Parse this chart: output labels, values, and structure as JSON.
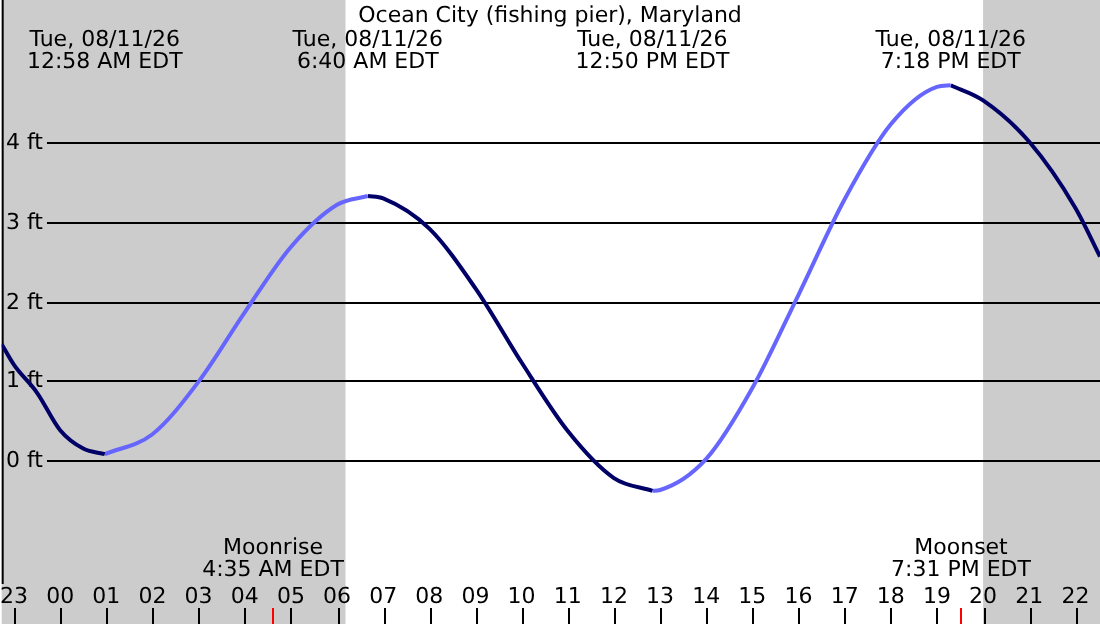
{
  "chart_data": {
    "type": "line",
    "title": "Ocean City (fishing pier), Maryland",
    "xlim": [
      "--08-10T22:44",
      "--08-11T22:32"
    ],
    "ylim": [
      -1.55,
      5.78
    ],
    "xticks": [
      {
        "value": "--08-10T23:00",
        "label": "23"
      },
      {
        "value": "--08-11T00:00",
        "label": "00"
      },
      {
        "value": "--08-11T01:00",
        "label": "01"
      },
      {
        "value": "--08-11T02:00",
        "label": "02"
      },
      {
        "value": "--08-11T03:00",
        "label": "03"
      },
      {
        "value": "--08-11T04:00",
        "label": "04"
      },
      {
        "value": "--08-11T05:00",
        "label": "05"
      },
      {
        "value": "--08-11T06:00",
        "label": "06"
      },
      {
        "value": "--08-11T07:00",
        "label": "07"
      },
      {
        "value": "--08-11T08:00",
        "label": "08"
      },
      {
        "value": "--08-11T09:00",
        "label": "09"
      },
      {
        "value": "--08-11T10:00",
        "label": "10"
      },
      {
        "value": "--08-11T11:00",
        "label": "11"
      },
      {
        "value": "--08-11T12:00",
        "label": "12"
      },
      {
        "value": "--08-11T13:00",
        "label": "13"
      },
      {
        "value": "--08-11T14:00",
        "label": "14"
      },
      {
        "value": "--08-11T15:00",
        "label": "15"
      },
      {
        "value": "--08-11T16:00",
        "label": "16"
      },
      {
        "value": "--08-11T17:00",
        "label": "17"
      },
      {
        "value": "--08-11T18:00",
        "label": "18"
      },
      {
        "value": "--08-11T19:00",
        "label": "19"
      },
      {
        "value": "--08-11T20:00",
        "label": "20"
      },
      {
        "value": "--08-11T21:00",
        "label": "21"
      },
      {
        "value": "--08-11T22:00",
        "label": "22"
      }
    ],
    "yticks": [
      {
        "value": 0,
        "label": "0 ft"
      },
      {
        "value": 1,
        "label": "1 ft"
      },
      {
        "value": 2,
        "label": "2 ft"
      },
      {
        "value": 3,
        "label": "3 ft"
      },
      {
        "value": 4,
        "label": "4 ft"
      }
    ],
    "grid": "y",
    "legend": false,
    "marker": "none",
    "line_style": "solid",
    "series": [
      {
        "color": "#000066",
        "x": [
          "--08-10T22:44",
          "--08-10T23:00",
          "--08-10T23:30",
          "--08-11T00:00",
          "--08-11T00:30",
          "--08-11T00:58"
        ],
        "values": [
          1.46,
          1.2,
          0.85,
          0.38,
          0.15,
          0.08
        ]
      },
      {
        "color": "#6666ff",
        "x": [
          "--08-11T00:58",
          "--08-11T02:00",
          "--08-11T03:00",
          "--08-11T04:00",
          "--08-11T05:00",
          "--08-11T06:00",
          "--08-11T06:40"
        ],
        "values": [
          0.08,
          0.33,
          0.99,
          1.86,
          2.68,
          3.21,
          3.32
        ]
      },
      {
        "color": "#000066",
        "x": [
          "--08-11T06:40",
          "--08-11T07:00",
          "--08-11T08:00",
          "--08-11T09:00",
          "--08-11T10:00",
          "--08-11T11:00",
          "--08-11T12:00",
          "--08-11T12:50"
        ],
        "values": [
          3.32,
          3.29,
          2.91,
          2.16,
          1.23,
          0.37,
          -0.22,
          -0.38
        ]
      },
      {
        "color": "#6666ff",
        "x": [
          "--08-11T12:50",
          "--08-11T13:00",
          "--08-11T14:00",
          "--08-11T15:00",
          "--08-11T16:00",
          "--08-11T17:00",
          "--08-11T18:00",
          "--08-11T19:00",
          "--08-11T19:18"
        ],
        "values": [
          -0.38,
          -0.37,
          0.02,
          0.91,
          2.08,
          3.28,
          4.22,
          4.69,
          4.71
        ]
      },
      {
        "color": "#000066",
        "x": [
          "--08-11T19:18",
          "--08-11T20:00",
          "--08-11T21:00",
          "--08-11T22:00",
          "--08-11T22:32"
        ],
        "values": [
          4.71,
          4.52,
          4.0,
          3.17,
          2.56
        ]
      }
    ],
    "bands": [
      {
        "axis": "x",
        "from": "--08-10T22:44",
        "to": "--08-11T06:11",
        "color": "#cccccc"
      },
      {
        "axis": "x",
        "from": "--08-11T20:00",
        "to": "--08-11T22:32",
        "color": "#cccccc"
      }
    ],
    "ref_lines": [
      {
        "axis": "x",
        "value": "--08-11T04:35",
        "label": "Moonrise\n4:35 AM EDT",
        "color": "#ff0000"
      },
      {
        "axis": "x",
        "value": "--08-11T19:31",
        "label": "Moonset\n7:31 PM EDT",
        "color": "#ff0000"
      }
    ],
    "annotations": [
      "Tue, 08/11/26\n12:58 AM EDT",
      "Tue, 08/11/26\n6:40 AM EDT",
      "Tue, 08/11/26\n12:50 PM EDT",
      "Tue, 08/11/26\n7:18 PM EDT"
    ]
  }
}
